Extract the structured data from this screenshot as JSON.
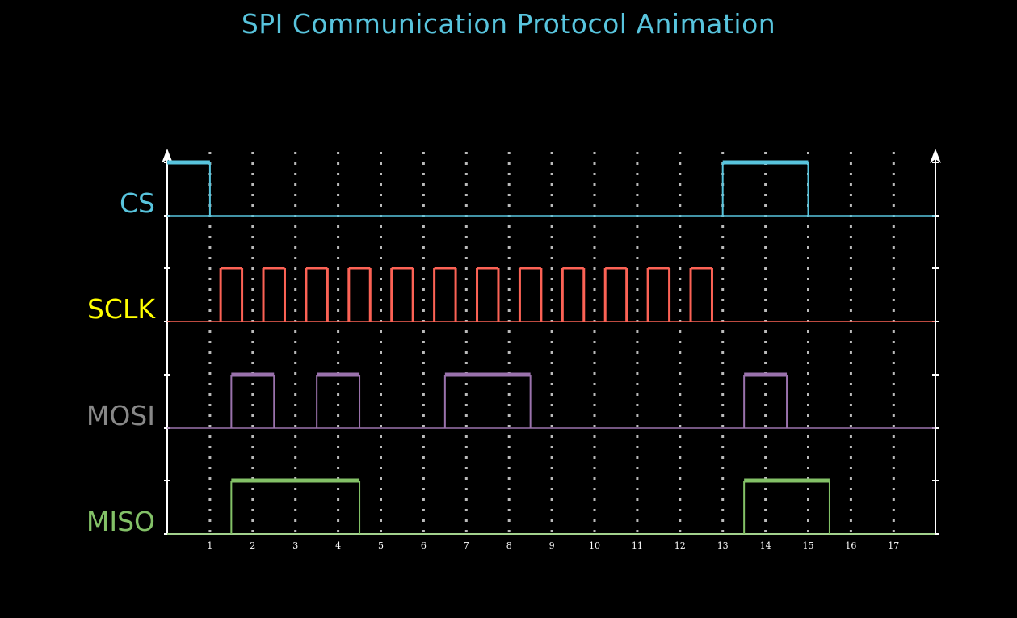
{
  "title": "SPI Communication Protocol Animation",
  "colors": {
    "background": "#000000",
    "title": "#58C4DD",
    "axes": "#FFFFFF",
    "grid": "#BBBBBB"
  },
  "time_axis": {
    "ticks": [
      1,
      2,
      3,
      4,
      5,
      6,
      7,
      8,
      9,
      10,
      11,
      12,
      13,
      14,
      15,
      16,
      17
    ],
    "range": [
      0,
      18
    ]
  },
  "signals": [
    {
      "label": "CS",
      "label_color": "#58C4DD",
      "line_color": "#58C4DD",
      "levels": [
        1,
        0,
        0,
        0,
        0,
        0,
        0,
        0,
        0,
        0,
        0,
        0,
        0,
        1,
        1,
        0,
        0,
        0
      ],
      "start": 0
    },
    {
      "label": "SCLK",
      "label_color": "#FFFF00",
      "line_color": "#FC6255",
      "clock": {
        "pulses": 12,
        "first_start": 1.25,
        "period": 1,
        "high_width": 0.5
      },
      "start": 0
    },
    {
      "label": "MOSI",
      "label_color": "#888888",
      "line_color": "#9A72AC",
      "levels": [
        0,
        1,
        0,
        1,
        0,
        0,
        1,
        1,
        0,
        0,
        0,
        0,
        0,
        1,
        0,
        0,
        0
      ],
      "start": 0.5
    },
    {
      "label": "MISO",
      "label_color": "#83C167",
      "line_color": "#83C167",
      "levels": [
        0,
        1,
        1,
        1,
        0,
        0,
        0,
        0,
        0,
        0,
        0,
        0,
        0,
        1,
        1,
        0,
        0
      ],
      "start": 0.5
    }
  ]
}
